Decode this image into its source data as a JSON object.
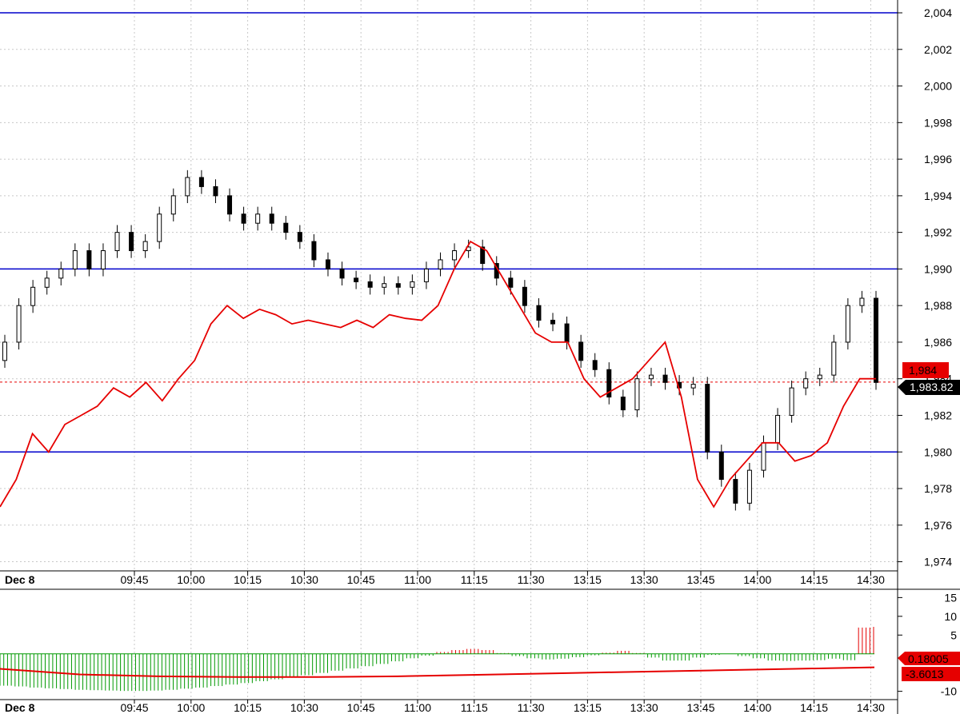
{
  "chart_data": [
    {
      "type": "candlestick",
      "date_label": "Dec 8",
      "time_labels": [
        "09:45",
        "10:00",
        "10:15",
        "10:30",
        "10:45",
        "11:00",
        "11:15",
        "11:30",
        "13:15",
        "13:30",
        "13:45",
        "14:00",
        "14:15",
        "14:30"
      ],
      "y_ticks": [
        "1,974",
        "1,976",
        "1,978",
        "1,980",
        "1,982",
        "1,984",
        "1,986",
        "1,988",
        "1,990",
        "1,992",
        "1,994",
        "1,996",
        "1,998",
        "2,000",
        "2,002",
        "2,004"
      ],
      "ylim": [
        1973.5,
        2004.7
      ],
      "grid": true,
      "horizontal_levels": [
        2004,
        1990,
        1980
      ],
      "close_series": [
        1986,
        1988,
        1989,
        1989.5,
        1990,
        1991,
        1990,
        1991,
        1992,
        1991,
        1991.5,
        1993,
        1994,
        1995,
        1994.5,
        1994,
        1993,
        1992.5,
        1993,
        1992.5,
        1992,
        1991.5,
        1990.5,
        1990,
        1989.5,
        1989.3,
        1989,
        1989.2,
        1989,
        1989.3,
        1990,
        1990.5,
        1991,
        1991.2,
        1990.3,
        1989.5,
        1989,
        1988,
        1987.2,
        1987,
        1986,
        1985,
        1984.5,
        1983,
        1982.3,
        1984,
        1984.2,
        1983.8,
        1983.5,
        1983.7,
        1980,
        1978.5,
        1977.2,
        1979,
        1980.5,
        1982,
        1983.5,
        1984,
        1984.2,
        1986,
        1988,
        1988.4,
        1983.8
      ],
      "red_series": [
        1977,
        1978.5,
        1981,
        1980,
        1981.5,
        1982,
        1982.5,
        1983.5,
        1983,
        1983.8,
        1982.8,
        1984,
        1985,
        1987,
        1988,
        1987.3,
        1987.8,
        1987.5,
        1987,
        1987.2,
        1987,
        1986.8,
        1987.2,
        1986.8,
        1987.5,
        1987.3,
        1987.2,
        1988,
        1990,
        1991.5,
        1991,
        1989.5,
        1988,
        1986.5,
        1986,
        1986,
        1984,
        1983,
        1983.5,
        1984,
        1985,
        1986,
        1983,
        1978.5,
        1977,
        1978.5,
        1979.5,
        1980.5,
        1980.5,
        1979.5,
        1979.8,
        1980.5,
        1982.5,
        1984,
        1984
      ],
      "last_price_tag": "1,984",
      "current_price_tag": "1,983.82",
      "current_price": 1983.82,
      "accent_color": "#e60000",
      "level_line_color": "#0000cc"
    },
    {
      "type": "bar",
      "date_label": "Dec 8",
      "time_labels": [
        "09:45",
        "10:00",
        "10:15",
        "10:30",
        "10:45",
        "11:00",
        "11:15",
        "11:30",
        "13:15",
        "13:30",
        "13:45",
        "14:00",
        "14:15",
        "14:30"
      ],
      "y_ticks": [
        "15",
        "10",
        "5",
        "-10"
      ],
      "ylim": [
        -12,
        17
      ],
      "histogram": [
        -8.5,
        -8.7,
        -9,
        -9.2,
        -9.4,
        -9.6,
        -9.7,
        -9.8,
        -9.9,
        -9.9,
        -9.8,
        -9.6,
        -9.3,
        -9,
        -8.6,
        -8.2,
        -7.8,
        -7.3,
        -6.8,
        -6.3,
        -5.7,
        -5.1,
        -4.5,
        -3.9,
        -3.3,
        -2.7,
        -2,
        -1.2,
        -0.5,
        0.5,
        1,
        1.3,
        1,
        0.2,
        -0.6,
        -1.2,
        -1.5,
        -1.3,
        -0.9,
        -0.4,
        0.3,
        0.8,
        0.2,
        -1,
        -1.8,
        -1.8,
        -1,
        -0.3,
        0,
        -0.6,
        -1.2,
        -1.8,
        -1.9,
        -1.8,
        -1.7,
        -1.3,
        -1.7,
        7,
        7.2
      ],
      "red_line": [
        -4,
        -5.5,
        -6,
        -6.2,
        -6.2,
        -6,
        -5.6,
        -5.2,
        -4.8,
        -4.4,
        -4,
        -3.6
      ],
      "tag_top": "0.18005",
      "tag_bottom": "-3.6013",
      "positive_color": "#e60000",
      "negative_color": "#009900"
    }
  ]
}
